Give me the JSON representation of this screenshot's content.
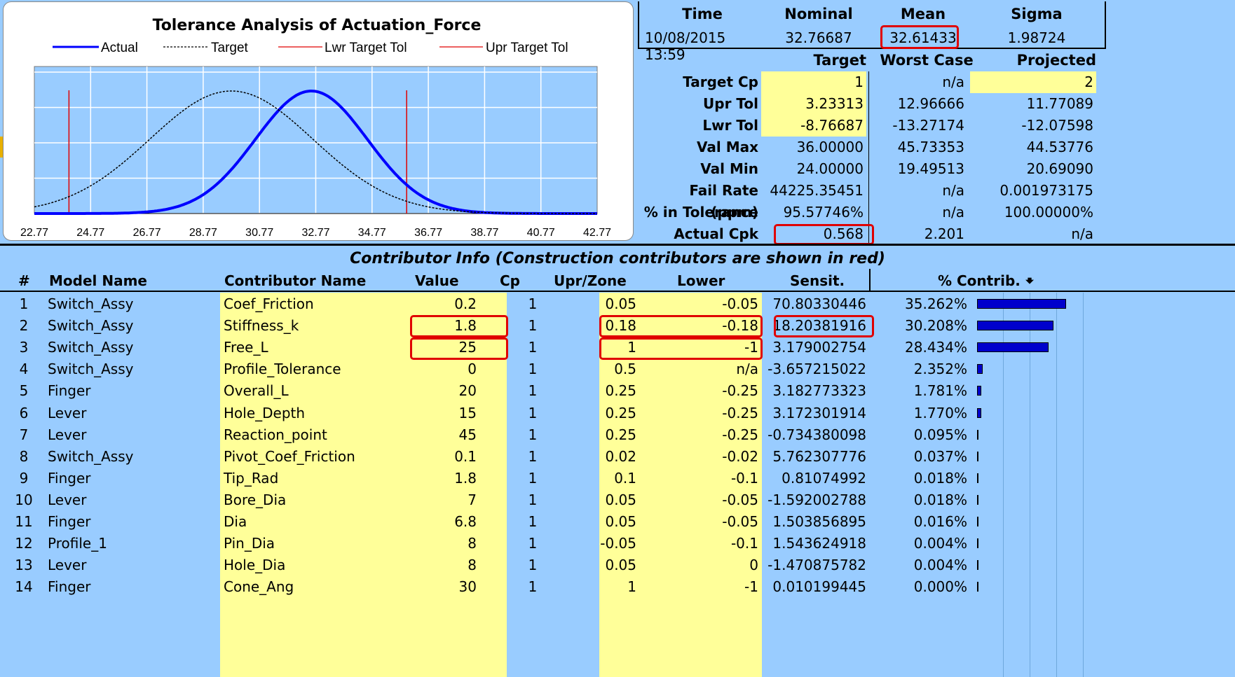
{
  "chart_data": {
    "type": "line",
    "title": "Tolerance Analysis of Actuation_Force",
    "legend": [
      "Actual",
      "Target",
      "Lwr Target Tol",
      "Upr Target Tol"
    ],
    "x_ticks": [
      "22.77",
      "24.77",
      "26.77",
      "28.77",
      "30.77",
      "32.77",
      "34.77",
      "36.77",
      "38.77",
      "40.77",
      "42.77"
    ],
    "xlim": [
      22.77,
      42.77
    ],
    "series": [
      {
        "name": "Actual",
        "mean": 32.61433,
        "sigma": 1.98724,
        "color": "#0000FF",
        "style": "solid"
      },
      {
        "name": "Target",
        "mean": 29.77,
        "sigma": 2.9,
        "color": "#000000",
        "style": "dotted"
      }
    ],
    "lwr_target_tol": 24.0,
    "upr_target_tol": 36.0,
    "grid": true,
    "legend_placement": "top"
  },
  "summary": {
    "headers": [
      "Time",
      "Nominal",
      "Mean",
      "Sigma"
    ],
    "values": [
      "10/08/2015 13:59",
      "32.76687",
      "32.61433",
      "1.98724"
    ]
  },
  "stats": {
    "col_headers": [
      "Target",
      "Worst Case",
      "Projected"
    ],
    "rows": [
      {
        "label": "Target Cp",
        "target": "1",
        "worst": "n/a",
        "proj": "2"
      },
      {
        "label": "Upr Tol",
        "target": "3.23313",
        "worst": "12.96666",
        "proj": "11.77089"
      },
      {
        "label": "Lwr Tol",
        "target": "-8.76687",
        "worst": "-13.27174",
        "proj": "-12.07598"
      },
      {
        "label": "Val Max",
        "target": "36.00000",
        "worst": "45.73353",
        "proj": "44.53776"
      },
      {
        "label": "Val Min",
        "target": "24.00000",
        "worst": "19.49513",
        "proj": "20.69090"
      },
      {
        "label": "Fail Rate (ppm)",
        "target": "44225.35451",
        "worst": "n/a",
        "proj": "0.001973175"
      },
      {
        "label": "% in Tolerance",
        "target": "95.57746%",
        "worst": "n/a",
        "proj": "100.00000%"
      },
      {
        "label": "Actual Cpk",
        "target": "0.568",
        "worst": "2.201",
        "proj": "n/a"
      }
    ]
  },
  "contrib": {
    "title": "Contributor Info (Construction contributors are shown in red)",
    "headers": {
      "num": "#",
      "model": "Model Name",
      "contrib": "Contributor Name",
      "value": "Value",
      "cp": "Cp",
      "upr": "Upr/Zone",
      "lower": "Lower",
      "sensit": "Sensit.",
      "pct": "% Contrib. 🠻"
    },
    "rows": [
      {
        "num": "1",
        "model": "Switch_Assy",
        "name": "Coef_Friction",
        "value": "0.2",
        "cp": "1",
        "upr": "0.05",
        "lower": "-0.05",
        "sensit": "70.80330446",
        "pct": "35.262%",
        "frac": 0.35262
      },
      {
        "num": "2",
        "model": "Switch_Assy",
        "name": "Stiffness_k",
        "value": "1.8",
        "cp": "1",
        "upr": "0.18",
        "lower": "-0.18",
        "sensit": "18.20381916",
        "pct": "30.208%",
        "frac": 0.30208
      },
      {
        "num": "3",
        "model": "Switch_Assy",
        "name": "Free_L",
        "value": "25",
        "cp": "1",
        "upr": "1",
        "lower": "-1",
        "sensit": "3.179002754",
        "pct": "28.434%",
        "frac": 0.28434
      },
      {
        "num": "4",
        "model": "Switch_Assy",
        "name": "Profile_Tolerance",
        "value": "0",
        "cp": "1",
        "upr": "0.5",
        "lower": "n/a",
        "sensit": "-3.657215022",
        "pct": "2.352%",
        "frac": 0.02352
      },
      {
        "num": "5",
        "model": "Finger",
        "name": "Overall_L",
        "value": "20",
        "cp": "1",
        "upr": "0.25",
        "lower": "-0.25",
        "sensit": "3.182773323",
        "pct": "1.781%",
        "frac": 0.01781
      },
      {
        "num": "6",
        "model": "Lever",
        "name": "Hole_Depth",
        "value": "15",
        "cp": "1",
        "upr": "0.25",
        "lower": "-0.25",
        "sensit": "3.172301914",
        "pct": "1.770%",
        "frac": 0.0177
      },
      {
        "num": "7",
        "model": "Lever",
        "name": "Reaction_point",
        "value": "45",
        "cp": "1",
        "upr": "0.25",
        "lower": "-0.25",
        "sensit": "-0.734380098",
        "pct": "0.095%",
        "frac": 0.00095
      },
      {
        "num": "8",
        "model": "Switch_Assy",
        "name": "Pivot_Coef_Friction",
        "value": "0.1",
        "cp": "1",
        "upr": "0.02",
        "lower": "-0.02",
        "sensit": "5.762307776",
        "pct": "0.037%",
        "frac": 0.00037
      },
      {
        "num": "9",
        "model": "Finger",
        "name": "Tip_Rad",
        "value": "1.8",
        "cp": "1",
        "upr": "0.1",
        "lower": "-0.1",
        "sensit": "0.81074992",
        "pct": "0.018%",
        "frac": 0.00018
      },
      {
        "num": "10",
        "model": "Lever",
        "name": "Bore_Dia",
        "value": "7",
        "cp": "1",
        "upr": "0.05",
        "lower": "-0.05",
        "sensit": "-1.592002788",
        "pct": "0.018%",
        "frac": 0.00018
      },
      {
        "num": "11",
        "model": "Finger",
        "name": "Dia",
        "value": "6.8",
        "cp": "1",
        "upr": "0.05",
        "lower": "-0.05",
        "sensit": "1.503856895",
        "pct": "0.016%",
        "frac": 0.00016
      },
      {
        "num": "12",
        "model": "Profile_1",
        "name": "Pin_Dia",
        "value": "8",
        "cp": "1",
        "upr": "-0.05",
        "lower": "-0.1",
        "sensit": "1.543624918",
        "pct": "0.004%",
        "frac": 4e-05
      },
      {
        "num": "13",
        "model": "Lever",
        "name": "Hole_Dia",
        "value": "8",
        "cp": "1",
        "upr": "0.05",
        "lower": "0",
        "sensit": "-1.470875782",
        "pct": "0.004%",
        "frac": 4e-05
      },
      {
        "num": "14",
        "model": "Finger",
        "name": "Cone_Ang",
        "value": "30",
        "cp": "1",
        "upr": "1",
        "lower": "-1",
        "sensit": "0.010199445",
        "pct": "0.000%",
        "frac": 0.0
      }
    ]
  }
}
